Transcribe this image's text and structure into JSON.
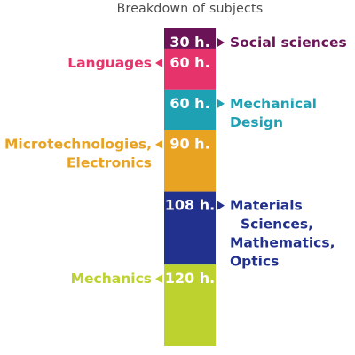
{
  "chart_data": {
    "type": "bar",
    "orientation": "vertical-stacked",
    "title": "Breakdown of subjects",
    "unit": "h.",
    "segments": [
      {
        "label": "Social sciences",
        "value": 30,
        "value_label": "30 h.",
        "color": "#6a1457",
        "label_side": "right"
      },
      {
        "label": "Languages",
        "value": 60,
        "value_label": "60 h.",
        "color": "#e6336b",
        "label_side": "left"
      },
      {
        "label": "Mechanical Design",
        "value": 60,
        "value_label": "60 h.",
        "color": "#1fa1b4",
        "label_side": "right"
      },
      {
        "label": "Microtechnologies, Electronics",
        "value": 90,
        "value_label": "90 h.",
        "color": "#e9a322",
        "label_side": "left"
      },
      {
        "label": "Materials Sciences, Mathematics, Optics",
        "value": 108,
        "value_label": "108 h.",
        "color": "#22318d",
        "label_side": "right"
      },
      {
        "label": "Mechanics",
        "value": 120,
        "value_label": "120 h.",
        "color": "#bdd12f",
        "label_side": "left"
      }
    ]
  }
}
